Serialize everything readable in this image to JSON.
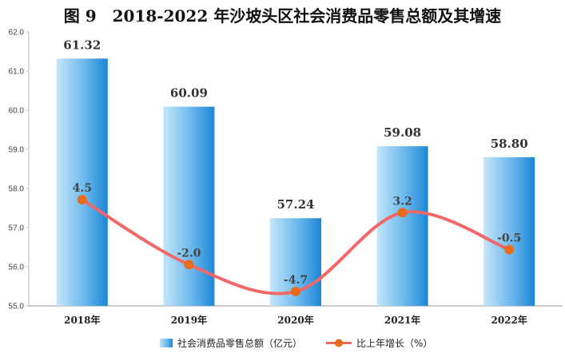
{
  "chart_data": {
    "type": "bar",
    "title": "图 9　2018-2022 年沙坡头区社会消费品零售总额及其增速",
    "categories": [
      "2018年",
      "2019年",
      "2020年",
      "2021年",
      "2022年"
    ],
    "ylim": [
      55.0,
      62.0
    ],
    "yticks": [
      "55.0",
      "56.0",
      "57.0",
      "58.0",
      "59.0",
      "60.0",
      "61.0",
      "62.0"
    ],
    "series": [
      {
        "name": "社会消费品零售总额（亿元）",
        "type": "bar",
        "values": [
          61.32,
          60.09,
          57.24,
          59.08,
          58.8
        ],
        "labels": [
          "61.32",
          "60.09",
          "57.24",
          "59.08",
          "58.80"
        ]
      },
      {
        "name": "比上年增长（%）",
        "type": "line",
        "values": [
          4.5,
          -2.0,
          -4.7,
          3.2,
          -0.5
        ],
        "labels": [
          "4.5",
          "-2.0",
          "-4.7",
          "3.2",
          "-0.5"
        ]
      }
    ],
    "colors": {
      "bar_light": "#bfe3f8",
      "bar_dark": "#1e8ad8",
      "line": "#f26868",
      "marker": "#e86c1c"
    },
    "legend_position": "bottom",
    "grid": false
  }
}
